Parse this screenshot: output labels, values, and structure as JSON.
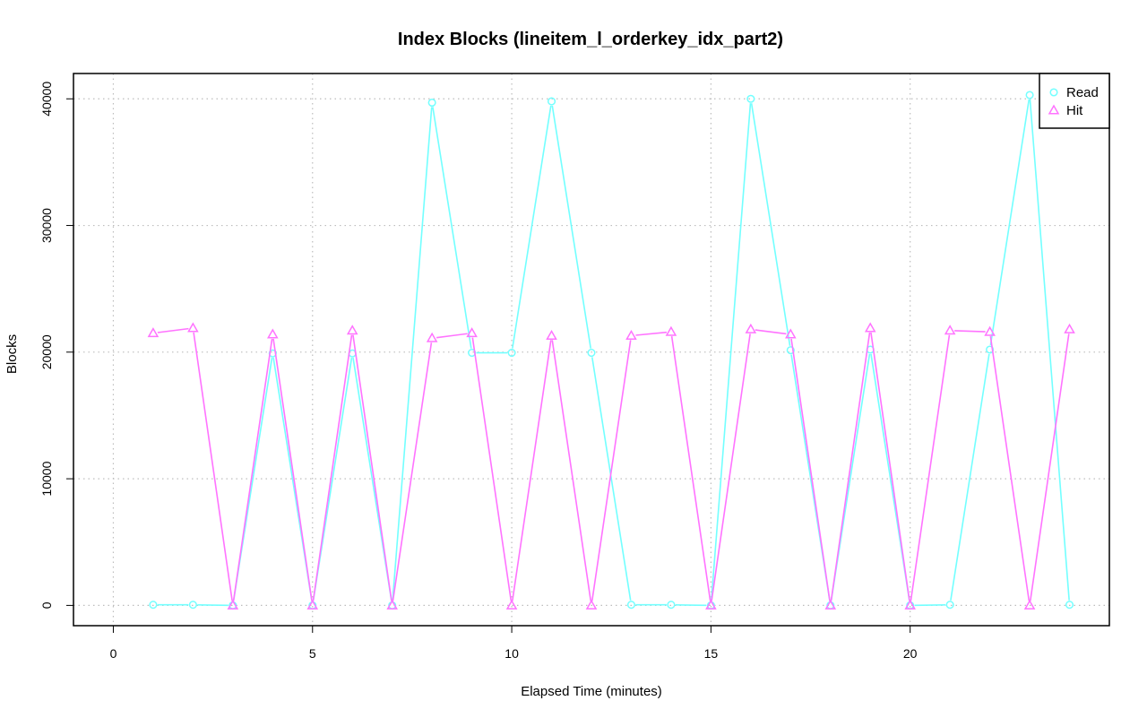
{
  "chart_data": {
    "type": "line",
    "title": "Index Blocks (lineitem_l_orderkey_idx_part2)",
    "xlabel": "Elapsed Time (minutes)",
    "ylabel": "Blocks",
    "xlim": [
      -1,
      25
    ],
    "ylim": [
      -1600,
      42000
    ],
    "xticks": [
      0,
      5,
      10,
      15,
      20
    ],
    "yticks": [
      0,
      10000,
      20000,
      30000,
      40000
    ],
    "grid": true,
    "legend_position": "top-right",
    "x": [
      1,
      2,
      3,
      4,
      5,
      6,
      7,
      8,
      9,
      10,
      11,
      12,
      13,
      14,
      15,
      16,
      17,
      18,
      19,
      20,
      21,
      22,
      23,
      24
    ],
    "series": [
      {
        "name": "Read",
        "marker": "circle",
        "color": "#73ffff",
        "values": [
          50,
          50,
          0,
          19900,
          0,
          19900,
          0,
          39700,
          19950,
          19950,
          39800,
          19950,
          50,
          50,
          0,
          40000,
          20150,
          0,
          20200,
          0,
          50,
          20200,
          40300,
          50
        ]
      },
      {
        "name": "Hit",
        "marker": "triangle",
        "color": "#ff73ff",
        "values": [
          21500,
          21900,
          0,
          21400,
          0,
          21700,
          0,
          21100,
          21500,
          0,
          21300,
          0,
          21300,
          21600,
          0,
          21800,
          21400,
          0,
          21900,
          0,
          21700,
          21600,
          0,
          21800
        ]
      }
    ]
  }
}
